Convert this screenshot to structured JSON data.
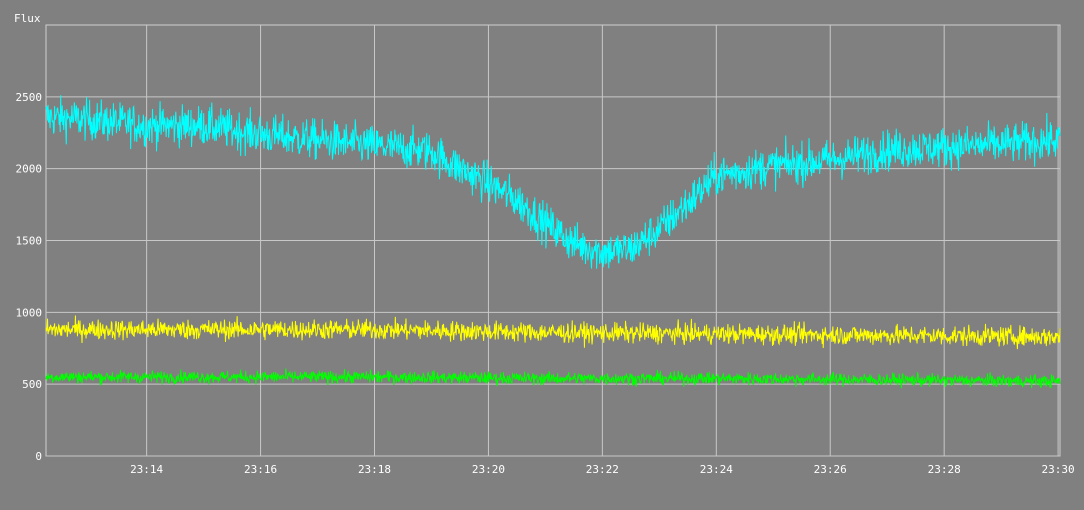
{
  "chart_data": {
    "type": "line",
    "title": "",
    "xlabel": "",
    "ylabel": "Flux",
    "xlim": [
      "23:12:14",
      "23:30:02"
    ],
    "ylim": [
      0,
      3000
    ],
    "grid": true,
    "legend": "none",
    "background_color": "#808080",
    "grid_color": "#c8c8c8",
    "x_ticks": [
      "23:14",
      "23:16",
      "23:18",
      "23:20",
      "23:22",
      "23:24",
      "23:26",
      "23:28",
      "23:30"
    ],
    "y_ticks": [
      "0",
      "500",
      "1000",
      "1500",
      "2000",
      "2500"
    ],
    "series": [
      {
        "color": "#00ffff",
        "noise": 70,
        "x": [
          "23:12:14",
          "23:13:00",
          "23:14:00",
          "23:15:00",
          "23:16:00",
          "23:17:00",
          "23:18:00",
          "23:19:00",
          "23:19:30",
          "23:20:00",
          "23:20:30",
          "23:21:00",
          "23:21:30",
          "23:22:00",
          "23:22:30",
          "23:23:00",
          "23:23:30",
          "23:24:00",
          "23:25:00",
          "23:26:00",
          "23:27:00",
          "23:28:00",
          "23:29:00",
          "23:30:02"
        ],
        "values": [
          2360,
          2340,
          2300,
          2300,
          2240,
          2200,
          2160,
          2120,
          2000,
          1900,
          1780,
          1620,
          1480,
          1420,
          1440,
          1580,
          1760,
          1950,
          2020,
          2060,
          2130,
          2150,
          2170,
          2200
        ]
      },
      {
        "color": "#ffff00",
        "noise": 35,
        "x": [
          "23:12:14",
          "23:15:00",
          "23:18:00",
          "23:21:00",
          "23:24:00",
          "23:27:00",
          "23:30:02"
        ],
        "values": [
          880,
          880,
          880,
          860,
          850,
          840,
          830
        ]
      },
      {
        "color": "#00ff00",
        "noise": 22,
        "x": [
          "23:12:14",
          "23:15:00",
          "23:18:00",
          "23:21:00",
          "23:24:00",
          "23:27:00",
          "23:30:02"
        ],
        "values": [
          550,
          550,
          550,
          540,
          540,
          530,
          520
        ]
      }
    ]
  }
}
